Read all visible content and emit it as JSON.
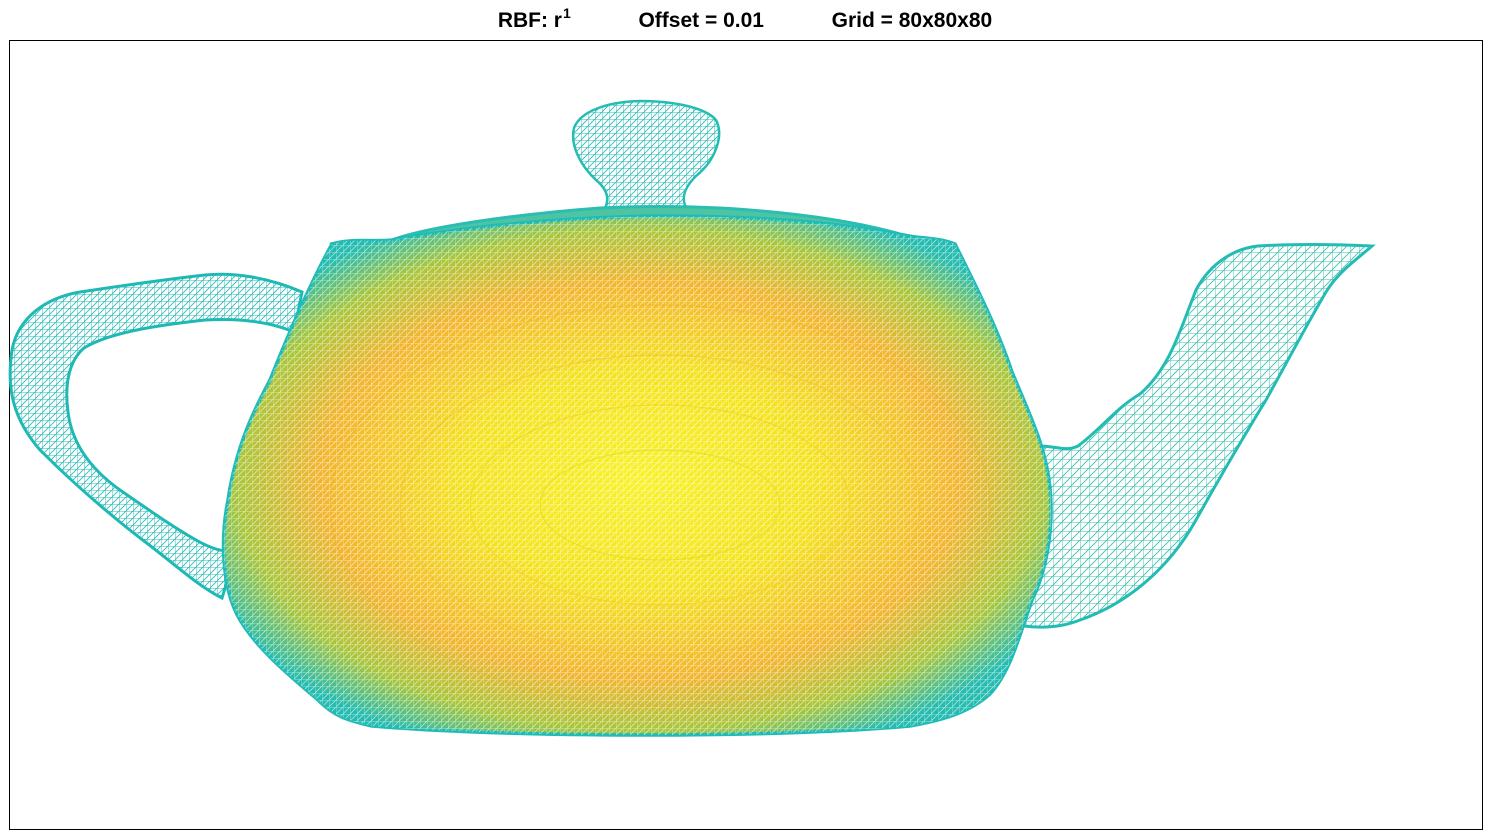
{
  "title": {
    "rbf_label": "RBF: r",
    "rbf_exponent": "1",
    "offset_label": "Offset = 0.01",
    "grid_label": "Grid = 80x80x80"
  },
  "colormap": {
    "edge": "#22bdb5",
    "mid": "#a8c43c",
    "warm": "#f2ad2e",
    "center": "#f6ee20"
  },
  "object": "teapot-wireframe-mesh"
}
